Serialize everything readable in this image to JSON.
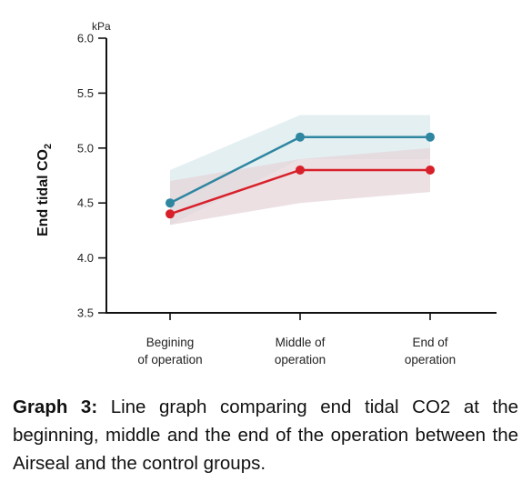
{
  "chart_data": {
    "type": "line",
    "categories": [
      "Begining of operation",
      "Middle of operation",
      "End of operation"
    ],
    "category_label_lines": [
      [
        "Begining",
        "of operation"
      ],
      [
        "Middle of",
        "operation"
      ],
      [
        "End of",
        "operation"
      ]
    ],
    "series": [
      {
        "values": [
          4.5,
          5.1,
          5.1
        ],
        "band_upper": [
          4.8,
          5.3,
          5.3
        ],
        "band_lower": [
          4.3,
          4.9,
          4.9
        ],
        "color": "#2e86a0",
        "band_color": "#dbe9ee"
      },
      {
        "values": [
          4.4,
          4.8,
          4.8
        ],
        "band_upper": [
          4.7,
          4.9,
          5.0
        ],
        "band_lower": [
          4.3,
          4.5,
          4.6
        ],
        "color": "#d8202a",
        "band_color": "#e6d6d9"
      }
    ],
    "ylabel": "End tidal CO",
    "ylabel_subscript": "2",
    "y_unit": "kPa",
    "ylim": [
      3.5,
      6.0
    ],
    "yticks": [
      "3.5",
      "4.0",
      "4.5",
      "5.0",
      "5.5",
      "6.0"
    ],
    "grid": false
  },
  "caption": {
    "label": "Graph 3:",
    "text": " Line graph comparing end tidal CO2 at the beginning, middle and the end of the operation between the Airseal and the control groups."
  }
}
